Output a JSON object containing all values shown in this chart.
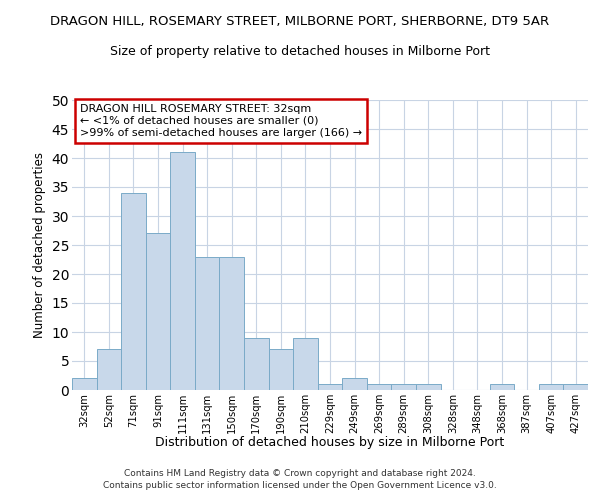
{
  "title": "DRAGON HILL, ROSEMARY STREET, MILBORNE PORT, SHERBORNE, DT9 5AR",
  "subtitle": "Size of property relative to detached houses in Milborne Port",
  "xlabel": "Distribution of detached houses by size in Milborne Port",
  "ylabel": "Number of detached properties",
  "categories": [
    "32sqm",
    "52sqm",
    "71sqm",
    "91sqm",
    "111sqm",
    "131sqm",
    "150sqm",
    "170sqm",
    "190sqm",
    "210sqm",
    "229sqm",
    "249sqm",
    "269sqm",
    "289sqm",
    "308sqm",
    "328sqm",
    "348sqm",
    "368sqm",
    "387sqm",
    "407sqm",
    "427sqm"
  ],
  "values": [
    2,
    7,
    34,
    27,
    41,
    23,
    23,
    9,
    7,
    9,
    1,
    2,
    1,
    1,
    1,
    0,
    0,
    1,
    0,
    1,
    1
  ],
  "bar_color": "#c8d8ea",
  "bar_edge_color": "#7aaac8",
  "ylim": [
    0,
    50
  ],
  "yticks": [
    0,
    5,
    10,
    15,
    20,
    25,
    30,
    35,
    40,
    45,
    50
  ],
  "annotation_title": "DRAGON HILL ROSEMARY STREET: 32sqm",
  "annotation_line1": "← <1% of detached houses are smaller (0)",
  "annotation_line2": ">99% of semi-detached houses are larger (166) →",
  "annotation_box_color": "#ffffff",
  "annotation_border_color": "#cc0000",
  "footer1": "Contains HM Land Registry data © Crown copyright and database right 2024.",
  "footer2": "Contains public sector information licensed under the Open Government Licence v3.0.",
  "bg_color": "#ffffff",
  "grid_color": "#c8d4e4"
}
